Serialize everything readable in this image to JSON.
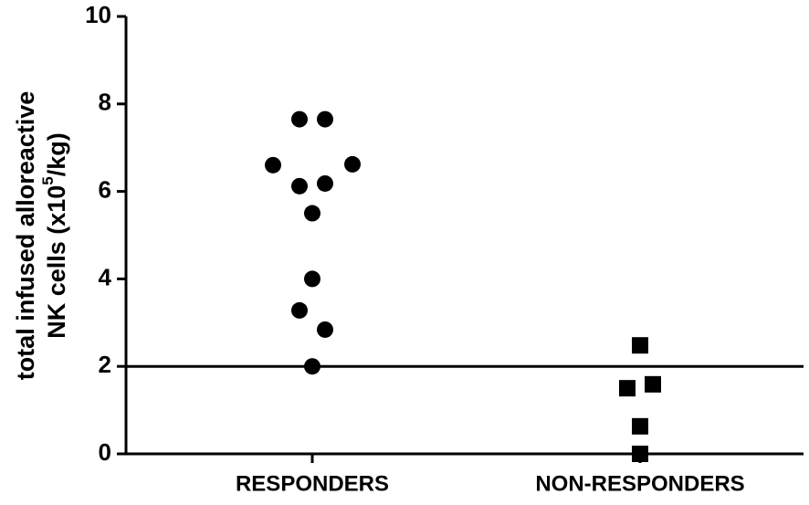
{
  "chart_data": {
    "type": "strip",
    "ylabel": {
      "line1": "total infused alloreactive",
      "line2": [
        "NK cells (x10",
        "5",
        "/kg)"
      ]
    },
    "categories": [
      "RESPONDERS",
      "NON-RESPONDERS"
    ],
    "values": [
      [
        7.65,
        7.65,
        6.6,
        6.62,
        6.12,
        6.18,
        5.5,
        4.0,
        3.28,
        2.84,
        2.0
      ],
      [
        2.48,
        1.5,
        1.59,
        0.63,
        0
      ]
    ],
    "markers": [
      "circle",
      "square"
    ],
    "color": "#000000",
    "reference_line": 2,
    "ylim": [
      0,
      10
    ],
    "yticks": [
      0,
      2,
      4,
      6,
      8,
      10
    ]
  }
}
